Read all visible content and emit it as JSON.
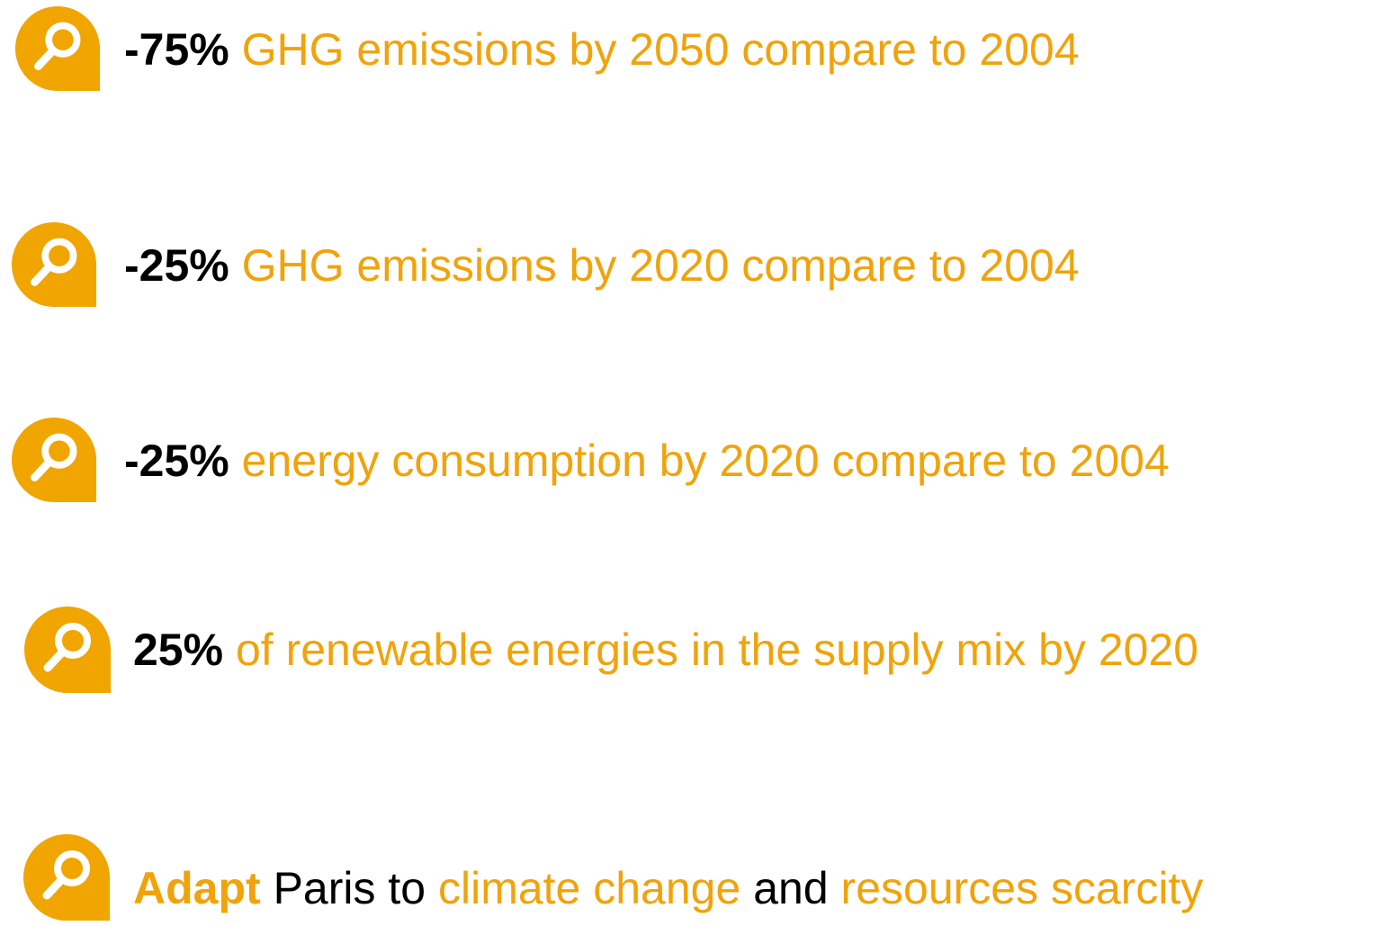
{
  "items": [
    {
      "highlight": "-75%",
      "text": "GHG emissions by 2050 compare to 2004"
    },
    {
      "highlight": "-25%",
      "text": "GHG emissions by 2020 compare to 2004"
    },
    {
      "highlight": "-25%",
      "text": "energy consumption by 2020 compare to 2004"
    },
    {
      "highlight": "25%",
      "text": "of renewable energies in the supply mix by 2020"
    },
    {
      "highlight": "Adapt",
      "parts": [
        "Paris to",
        "climate change",
        "and",
        "resources scarcity"
      ]
    }
  ]
}
